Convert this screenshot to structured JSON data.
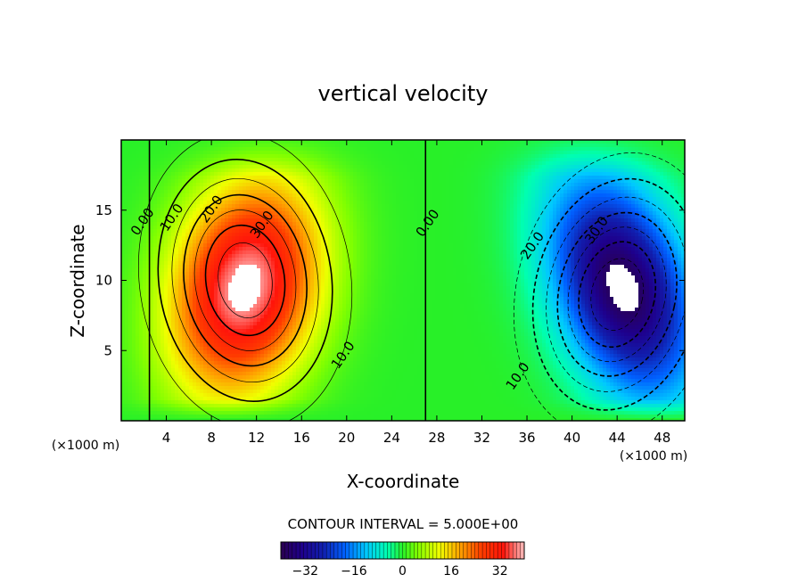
{
  "chart_data": {
    "type": "heatmap",
    "subtype": "filled-contour",
    "title": "vertical velocity",
    "xlabel": "X-coordinate",
    "ylabel": "Z-coordinate",
    "x_unit_left": "(×1000 m)",
    "x_unit_right": "(×1000 m)",
    "xlim": [
      0,
      50
    ],
    "ylim": [
      0,
      20
    ],
    "xticks": [
      4,
      8,
      12,
      16,
      20,
      24,
      28,
      32,
      36,
      40,
      44,
      48
    ],
    "xtick_labels": [
      "4",
      "8",
      "12",
      "16",
      "20",
      "24",
      "28",
      "32",
      "36",
      "40",
      "44",
      "48"
    ],
    "yticks": [
      5,
      10,
      15
    ],
    "ytick_labels": [
      "5",
      "10",
      "15"
    ],
    "contour_interval": 5.0,
    "contour_interval_text": "CONTOUR INTERVAL =  5.000E+00",
    "value_range": [
      -40,
      40
    ],
    "cells": [
      {
        "name": "updraft",
        "x_center": 11,
        "z_center": 10,
        "max_value": 38,
        "sign": "positive"
      },
      {
        "name": "downdraft",
        "x_center": 44,
        "z_center": 9,
        "min_value": -38,
        "sign": "negative"
      }
    ],
    "contour_labels": [
      {
        "text": "0.00",
        "x": 2.2,
        "z": 14
      },
      {
        "text": "10.0",
        "x": 4.8,
        "z": 14.3
      },
      {
        "text": "20.0",
        "x": 8.3,
        "z": 14.9
      },
      {
        "text": "30.0",
        "x": 12.8,
        "z": 13.8
      },
      {
        "text": "10.0",
        "x": 20,
        "z": 4.5
      },
      {
        "text": "0.00",
        "x": 27.5,
        "z": 13.9
      },
      {
        "text": "20.0",
        "x": 36.8,
        "z": 12.3
      },
      {
        "text": "30.0",
        "x": 42.5,
        "z": 13.4
      },
      {
        "text": "10.0",
        "x": 35.5,
        "z": 3.0
      }
    ],
    "colorbar": {
      "min": -40,
      "max": 40,
      "ticks": [
        -32,
        -16,
        0,
        16,
        32
      ],
      "tick_labels": [
        "−32",
        "−16",
        "0",
        "16",
        "32"
      ],
      "colors": [
        "#2a0050",
        "#1020b0",
        "#0060ff",
        "#00c8ff",
        "#00ff90",
        "#a0ff00",
        "#ffff00",
        "#ff8000",
        "#ff1000",
        "#ffb0b0"
      ]
    },
    "grid": false
  }
}
